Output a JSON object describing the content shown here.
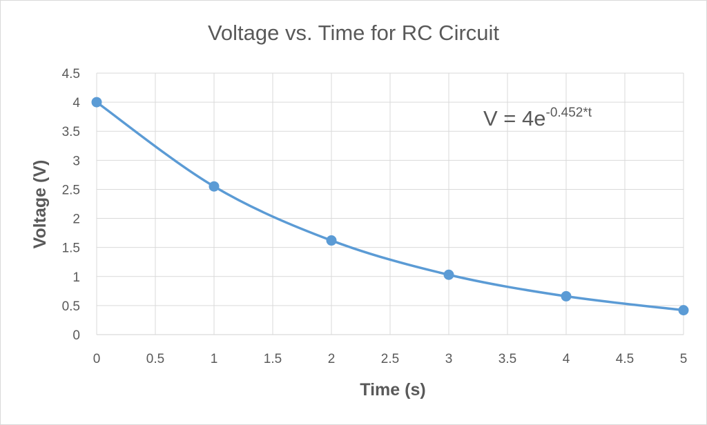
{
  "chart_data": {
    "type": "scatter",
    "title": "Voltage vs. Time for RC Circuit",
    "xlabel": "Time (s)",
    "ylabel": "Voltage (V)",
    "xlim": [
      0,
      5
    ],
    "ylim": [
      0,
      4.5
    ],
    "x_ticks": [
      "0",
      "0.5",
      "1",
      "1.5",
      "2",
      "2.5",
      "3",
      "3.5",
      "4",
      "4.5",
      "5"
    ],
    "y_ticks": [
      "0",
      "0.5",
      "1",
      "1.5",
      "2",
      "2.5",
      "3",
      "3.5",
      "4",
      "4.5"
    ],
    "grid": true,
    "legend": "none",
    "series": [
      {
        "x": [
          0,
          1,
          2,
          3,
          4,
          5
        ],
        "y": [
          4.0,
          2.55,
          1.62,
          1.03,
          0.66,
          0.42
        ],
        "color": "#5b9bd5",
        "marker": "circle",
        "line": "smooth"
      }
    ],
    "annotation": {
      "base": "V = 4e",
      "exponent": "-0.452*t"
    }
  }
}
